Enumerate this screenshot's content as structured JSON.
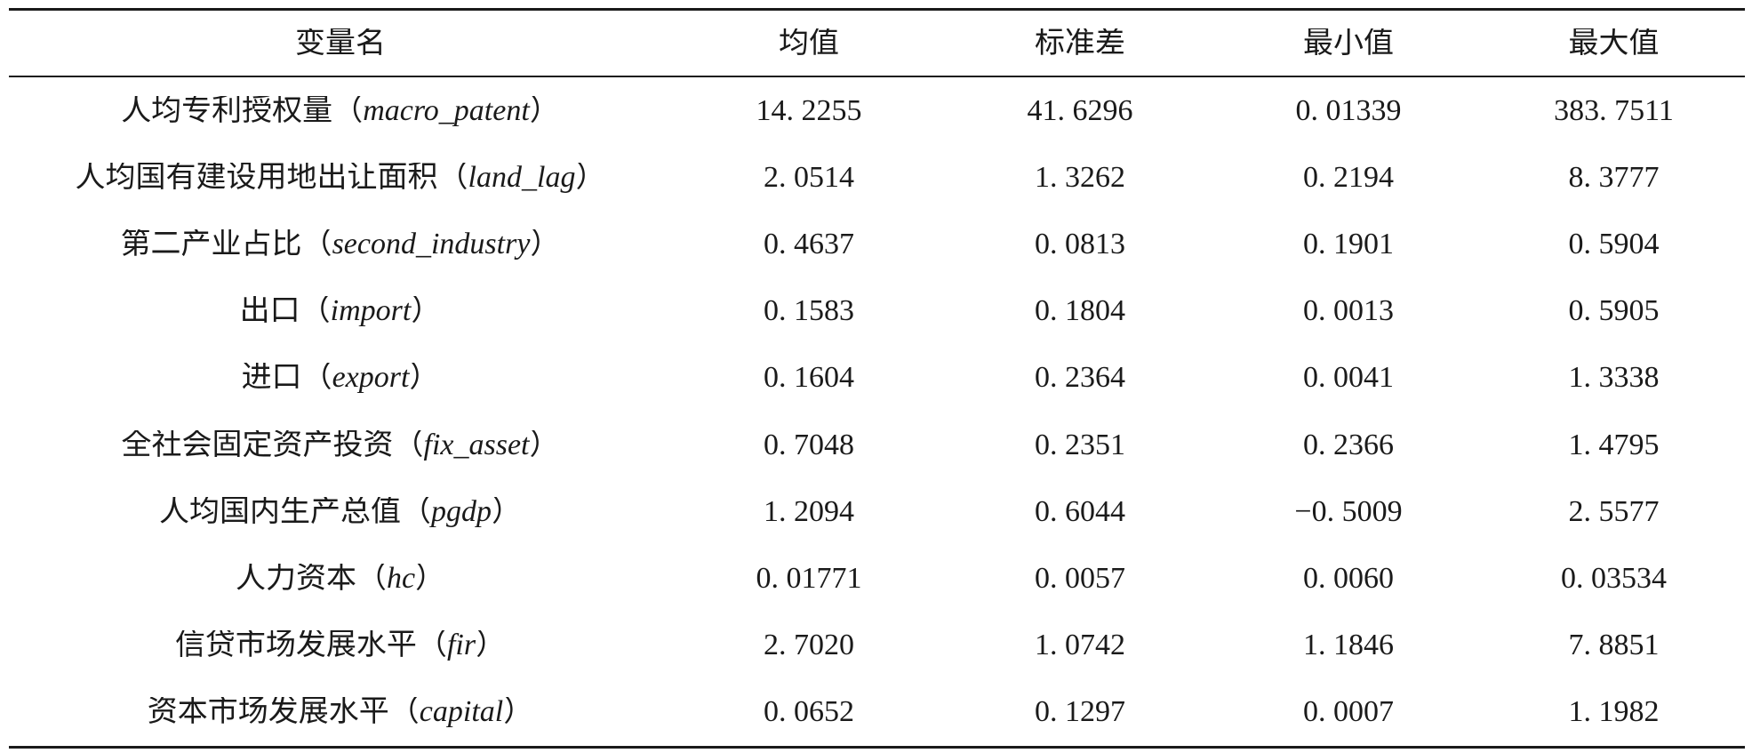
{
  "paren": {
    "open": "（",
    "close": "）"
  },
  "table": {
    "headers": [
      "变量名",
      "均值",
      "标准差",
      "最小值",
      "最大值"
    ],
    "rows": [
      {
        "label": "人均专利授权量",
        "var": "macro_patent",
        "mean": "14. 2255",
        "sd": "41. 6296",
        "min": "0. 01339",
        "max": "383. 7511"
      },
      {
        "label": "人均国有建设用地出让面积",
        "var": "land_lag",
        "mean": "2. 0514",
        "sd": "1. 3262",
        "min": "0. 2194",
        "max": "8. 3777"
      },
      {
        "label": "第二产业占比",
        "var": "second_industry",
        "mean": "0. 4637",
        "sd": "0. 0813",
        "min": "0. 1901",
        "max": "0. 5904"
      },
      {
        "label": "出口",
        "var": "import",
        "mean": "0. 1583",
        "sd": "0. 1804",
        "min": "0. 0013",
        "max": "0. 5905"
      },
      {
        "label": "进口",
        "var": "export",
        "mean": "0. 1604",
        "sd": "0. 2364",
        "min": "0. 0041",
        "max": "1. 3338"
      },
      {
        "label": "全社会固定资产投资",
        "var": "fix_asset",
        "mean": "0. 7048",
        "sd": "0. 2351",
        "min": "0. 2366",
        "max": "1. 4795"
      },
      {
        "label": "人均国内生产总值",
        "var": "pgdp",
        "mean": "1. 2094",
        "sd": "0. 6044",
        "min": "−0. 5009",
        "max": "2. 5577"
      },
      {
        "label": "人力资本",
        "var": "hc",
        "mean": "0. 01771",
        "sd": "0. 0057",
        "min": "0. 0060",
        "max": "0. 03534"
      },
      {
        "label": "信贷市场发展水平",
        "var": "fir",
        "mean": "2. 7020",
        "sd": "1. 0742",
        "min": "1. 1846",
        "max": "7. 8851"
      },
      {
        "label": "资本市场发展水平",
        "var": "capital",
        "mean": "0. 0652",
        "sd": "0. 1297",
        "min": "0. 0007",
        "max": "1. 1982"
      }
    ]
  }
}
